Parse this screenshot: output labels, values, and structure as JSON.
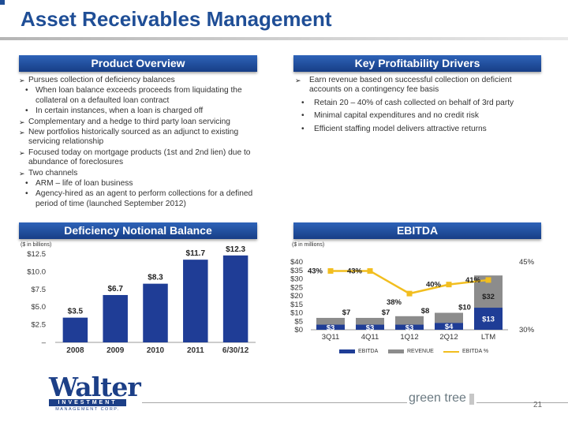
{
  "page": {
    "title": "Asset Receivables Management",
    "page_number": "21",
    "brand_text": "green tree"
  },
  "logo": {
    "word": "Walter",
    "band": "INVESTMENT",
    "sub": "MANAGEMENT CORP."
  },
  "sections": {
    "product_overview": "Product Overview",
    "key_profitability": "Key Profitability Drivers",
    "deficiency_balance": "Deficiency Notional Balance",
    "ebitda": "EBITDA"
  },
  "product_overview": {
    "items": [
      {
        "text": "Pursues collection of deficiency balances",
        "sub": [
          "When loan balance exceeds proceeds from liquidating the collateral on a defaulted loan contract",
          "In certain instances, when a loan is charged off"
        ]
      },
      {
        "text": "Complementary and a hedge to third party loan servicing",
        "sub": []
      },
      {
        "text": "New portfolios historically sourced as an adjunct to existing servicing relationship",
        "sub": []
      },
      {
        "text": "Focused today on mortgage products (1st and 2nd lien) due to abundance of foreclosures",
        "sub": []
      },
      {
        "text": "Two channels",
        "sub": [
          "ARM – life of loan business",
          "Agency-hired as an agent to perform collections for a defined period of time (launched September 2012)"
        ]
      }
    ]
  },
  "key_drivers": {
    "main": "Earn revenue based on successful collection on deficient accounts on a contingency fee basis",
    "sub": [
      "Retain 20 – 40% of cash collected on behalf of 3rd party",
      "Minimal capital expenditures and no credit risk",
      "Efficient staffing model delivers attractive returns"
    ]
  },
  "units": {
    "left": "($ in billions)",
    "right": "($ in millions)"
  },
  "chart_data": [
    {
      "type": "bar",
      "categories": [
        "2008",
        "2009",
        "2010",
        "2011",
        "6/30/12"
      ],
      "values": [
        3.5,
        6.7,
        8.3,
        11.7,
        12.3
      ],
      "value_labels": [
        "$3.5",
        "$6.7",
        "$8.3",
        "$11.7",
        "$12.3"
      ],
      "y_ticks": [
        "$12.5",
        "$10.0",
        "$7.5",
        "$5.0",
        "$2.5",
        "–"
      ],
      "y_tick_values": [
        12.5,
        10.0,
        7.5,
        5.0,
        2.5,
        0
      ],
      "ylim": [
        0,
        12.5
      ],
      "color": "#1f3d96"
    },
    {
      "type": "bar",
      "categories": [
        "3Q11",
        "4Q11",
        "1Q12",
        "2Q12",
        "LTM"
      ],
      "series": [
        {
          "name": "EBITDA",
          "values": [
            3,
            3,
            3,
            4,
            13
          ],
          "labels": [
            "$3",
            "$3",
            "$3",
            "$4",
            "$13"
          ],
          "color": "#1f3d96"
        },
        {
          "name": "REVENUE",
          "values": [
            7,
            7,
            8,
            10,
            32
          ],
          "labels": [
            "$7",
            "$7",
            "$8",
            "$10",
            "$32"
          ],
          "color": "#8c8c8c"
        },
        {
          "name": "EBITDA %",
          "values": [
            43,
            43,
            38,
            40,
            41
          ],
          "labels": [
            "43%",
            "43%",
            "38%",
            "40%",
            "41%"
          ],
          "color": "#f2be1f",
          "type": "line",
          "axis": "right"
        }
      ],
      "y_ticks": [
        "$40",
        "$35",
        "$30",
        "$25",
        "$20",
        "$15",
        "$10",
        "$5",
        "$0"
      ],
      "y_tick_values": [
        40,
        35,
        30,
        25,
        20,
        15,
        10,
        5,
        0
      ],
      "ylim": [
        0,
        40
      ],
      "y2_ticks": [
        "45%",
        "30%"
      ],
      "y2_tick_values": [
        45,
        30
      ],
      "y2lim": [
        30,
        45
      ]
    }
  ]
}
